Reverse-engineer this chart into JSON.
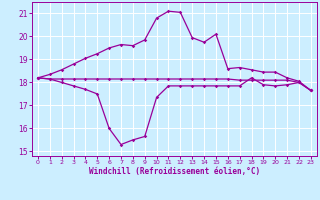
{
  "xlabel": "Windchill (Refroidissement éolien,°C)",
  "bg_color": "#cceeff",
  "grid_color": "#ffffff",
  "line_color": "#990099",
  "xlim": [
    -0.5,
    23.5
  ],
  "ylim": [
    14.8,
    21.5
  ],
  "yticks": [
    15,
    16,
    17,
    18,
    19,
    20,
    21
  ],
  "xticks": [
    0,
    1,
    2,
    3,
    4,
    5,
    6,
    7,
    8,
    9,
    10,
    11,
    12,
    13,
    14,
    15,
    16,
    17,
    18,
    19,
    20,
    21,
    22,
    23
  ],
  "line1_x": [
    0,
    1,
    2,
    3,
    4,
    5,
    6,
    7,
    8,
    9,
    10,
    11,
    12,
    13,
    14,
    15,
    16,
    17,
    18,
    19,
    20,
    21,
    22,
    23
  ],
  "line1_y": [
    18.2,
    18.35,
    18.55,
    18.8,
    19.05,
    19.25,
    19.5,
    19.65,
    19.6,
    19.85,
    20.8,
    21.1,
    21.05,
    19.95,
    19.75,
    20.1,
    18.6,
    18.65,
    18.55,
    18.45,
    18.45,
    18.2,
    18.05,
    17.65
  ],
  "line2_x": [
    0,
    1,
    2,
    3,
    4,
    5,
    6,
    7,
    8,
    9,
    10,
    11,
    12,
    13,
    14,
    15,
    16,
    17,
    18,
    19,
    20,
    21,
    22,
    23
  ],
  "line2_y": [
    18.2,
    18.15,
    18.15,
    18.15,
    18.15,
    18.15,
    18.15,
    18.15,
    18.15,
    18.15,
    18.15,
    18.15,
    18.15,
    18.15,
    18.15,
    18.15,
    18.15,
    18.1,
    18.1,
    18.1,
    18.1,
    18.1,
    18.0,
    17.65
  ],
  "line3_x": [
    0,
    1,
    2,
    3,
    4,
    5,
    6,
    7,
    8,
    9,
    10,
    11,
    12,
    13,
    14,
    15,
    16,
    17,
    18,
    19,
    20,
    21,
    22,
    23
  ],
  "line3_y": [
    18.2,
    18.15,
    18.0,
    17.85,
    17.7,
    17.5,
    16.0,
    15.3,
    15.5,
    15.65,
    17.35,
    17.85,
    17.85,
    17.85,
    17.85,
    17.85,
    17.85,
    17.85,
    18.2,
    17.9,
    17.85,
    17.9,
    18.0,
    17.65
  ]
}
